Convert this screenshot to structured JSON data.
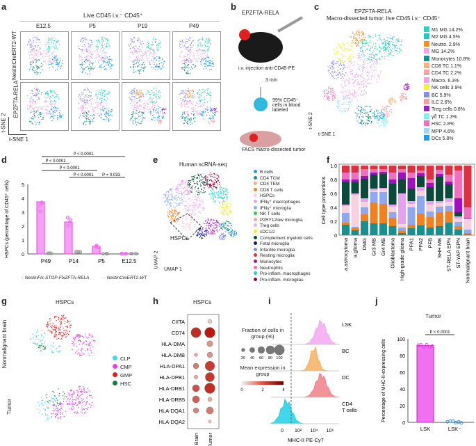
{
  "panels": {
    "a": {
      "label": "a",
      "header": "Live CD45 i.v.⁻ CD45⁺",
      "columns": [
        "E12.5",
        "P5",
        "P19",
        "P49"
      ],
      "rows": [
        "NestinCreERT2-WT",
        "EPZFTA-RELA"
      ],
      "axis_x": "t-SNE 1",
      "axis_y": "t-SNE 2"
    },
    "b": {
      "label": "b",
      "title": "EPZFTA-RELA",
      "step1": "i.v. injection anti-CD45-PE",
      "step2": "3 min",
      "step3": "99% CD45⁺ cells in blood labeled",
      "step4": "FACS macro-dissected tumor"
    },
    "c": {
      "label": "c",
      "title": "EPZFTA-RELA",
      "subtitle": "Macro-dissected tumor: live CD45 i.v.⁻ CD45⁺",
      "cluster_labels": [
        "M2 MG",
        "M1 MG",
        "Neutro.",
        "NK cells",
        "BC",
        "MG",
        "Treg cells",
        "Macro.",
        "CD8 TC",
        "ILC",
        "CD4 TC",
        "HSC",
        "MPP",
        "Monocytes",
        "DCs",
        "γδ TC"
      ],
      "legend": [
        {
          "label": "M1 MG 14.2%",
          "color": "#2bd4c0"
        },
        {
          "label": "M2 MG 4.5%",
          "color": "#1fc9c9"
        },
        {
          "label": "Neutro. 2.9%",
          "color": "#f39020"
        },
        {
          "label": "MG 14.2%",
          "color": "#e8a8f0"
        },
        {
          "label": "Monocytes 10.8%",
          "color": "#168f8f"
        },
        {
          "label": "CD8 TC 1.1%",
          "color": "#f7b27a"
        },
        {
          "label": "CD4 TC 2.2%",
          "color": "#f4a3a3"
        },
        {
          "label": "Macro. 6.3%",
          "color": "#f3a0e8"
        },
        {
          "label": "NK cells 3.9%",
          "color": "#f4f03a"
        },
        {
          "label": "BC 5.9%",
          "color": "#8c8ce8"
        },
        {
          "label": "ILC 2.6%",
          "color": "#f0a0a0"
        },
        {
          "label": "Treg cells 0.8%",
          "color": "#a020c0"
        },
        {
          "label": "γδ TC 1.3%",
          "color": "#7ff0ee"
        },
        {
          "label": "HSC 2.8%",
          "color": "#f070c0"
        },
        {
          "label": "MPP 4.6%",
          "color": "#a0d8f4"
        },
        {
          "label": "DCs 5.8%",
          "color": "#18a0e8"
        }
      ],
      "axis_x": "t-SNE 1",
      "axis_y": "t-SNE 2"
    },
    "d": {
      "label": "d",
      "legend": [
        "NestinFlx-STOP-FlxZFTA-RELA",
        "NestinCreERT2-WT"
      ]
    },
    "e": {
      "label": "e",
      "title": "Human scRNA-seq",
      "annotation": "HSPCs",
      "axis_x": "UMAP 1",
      "axis_y": "UMAP 2",
      "legend": [
        {
          "label": "B cells",
          "color": "#2a9fd6"
        },
        {
          "label": "CD4 TCM",
          "color": "#1a8f8f"
        },
        {
          "label": "CD4 TEM",
          "color": "#f2b070"
        },
        {
          "label": "CD8 T cells",
          "color": "#f08020"
        },
        {
          "label": "HSPCs",
          "color": "#f8d0e0"
        },
        {
          "label": "IFNγ⁺ macrophages",
          "color": "#e8a0f0"
        },
        {
          "label": "IFNγ⁺ microglia",
          "color": "#90a8f0"
        },
        {
          "label": "NK T cells",
          "color": "#30d030"
        },
        {
          "label": "P2RY12low microglia",
          "color": "#f0a0a0"
        },
        {
          "label": "Treg cells",
          "color": "#f0b0e8"
        },
        {
          "label": "cDC1/2",
          "color": "#f0f020"
        },
        {
          "label": "Complement myeloid cells",
          "color": "#0a4a3a"
        },
        {
          "label": "Fetal microglia",
          "color": "#101090"
        },
        {
          "label": "Infantile microglia",
          "color": "#8888e0"
        },
        {
          "label": "Resting microglia",
          "color": "#e03040"
        },
        {
          "label": "Monocytes",
          "color": "#a010c0"
        },
        {
          "label": "Neutrophils",
          "color": "#f070c0"
        },
        {
          "label": "Pro-inflam. macrophages",
          "color": "#20d0d0"
        },
        {
          "label": "Pro-inflam. microglias",
          "color": "#a00040"
        }
      ]
    },
    "f": {
      "label": "f"
    },
    "g": {
      "label": "g",
      "title": "HSPCs",
      "rows": [
        "Nonmalignant brain",
        "Tumor"
      ],
      "legend": [
        {
          "label": "CLP",
          "color": "#40d8f0"
        },
        {
          "label": "CMP",
          "color": "#e040e0"
        },
        {
          "label": "GMP",
          "color": "#e02020"
        },
        {
          "label": "HSC",
          "color": "#108040"
        }
      ]
    },
    "h": {
      "label": "h",
      "title": "HSPCs",
      "size_legend_title": "Fraction of cells in group (%)",
      "size_ticks": [
        "20",
        "40",
        "60",
        "80",
        "100"
      ],
      "color_legend_title": "Mean expression in group",
      "color_ticks": [
        "0",
        "2",
        "4"
      ]
    },
    "i": {
      "label": "i",
      "populations": [
        "LSK",
        "BC",
        "DC",
        "CD4 T cells"
      ],
      "colors": [
        "#f4a8f0",
        "#f5b060",
        "#f08088",
        "#20d0e8"
      ],
      "xlabel": "MHC-II PE-Cy7",
      "xticks": [
        "0",
        "10²",
        "10⁴",
        "10⁶"
      ]
    },
    "j": {
      "label": "j",
      "title": "Tumor",
      "pvalue": "P < 0.0001"
    }
  },
  "chart_data": [
    {
      "type": "bar",
      "panel": "d",
      "categories": [
        "P49",
        "P14",
        "P5",
        "E12.5"
      ],
      "ylabel": "HSPCs (percentage of CD45⁺ cells)",
      "ylim": [
        0,
        5
      ],
      "yticks": [
        "0",
        "1",
        "2",
        "3",
        "4",
        "5"
      ],
      "series": [
        {
          "name": "NestinFlx-STOP-FlxZFTA-RELA",
          "values": [
            3.75,
            2.3,
            0.55,
            0.02
          ],
          "color": "#f070f0"
        },
        {
          "name": "NestinCreERT2-WT",
          "values": [
            0.05,
            0.15,
            0.02,
            0.02
          ],
          "color": "#999999"
        }
      ],
      "comparisons": [
        {
          "pair": [
            "P49",
            "E12.5"
          ],
          "p": "P < 0.0001"
        },
        {
          "pair": [
            "P49",
            "P14"
          ],
          "p": "P < 0.0001"
        },
        {
          "pair": [
            "P49",
            "P5"
          ],
          "p": "P < 0.0001"
        },
        {
          "pair": [
            "P14",
            "P5"
          ],
          "p": "P < 0.0001"
        },
        {
          "pair": [
            "P5",
            "E12.5"
          ],
          "p": "P = 0.033"
        }
      ]
    },
    {
      "type": "bar",
      "panel": "f",
      "stacked": true,
      "ylabel": "Cell type proportions",
      "ylim": [
        0,
        1
      ],
      "yticks": [
        "0",
        "0.2",
        "0.4",
        "0.6",
        "0.8",
        "1.0"
      ],
      "categories": [
        "a.astrocytoma",
        "a.glioma",
        "DMG",
        "Gr3 MB",
        "Gr4 MB",
        "Glioblastoma",
        "High-grade glioma",
        "PFA1",
        "PFA2",
        "PFB",
        "SHH MB",
        "ST-RELA EPN",
        "ST-YAP EPN",
        "Nonmalignant brain"
      ],
      "segments": [
        {
          "color": "#1a8f8f",
          "values": [
            0.15,
            0.07,
            0.2,
            0.17,
            0.17,
            0.13,
            0.03,
            0.1,
            0.14,
            0.11,
            0.13,
            0.18,
            0.08,
            0.01
          ]
        },
        {
          "color": "#f08020",
          "values": [
            0.03,
            0.03,
            0.1,
            0.3,
            0.28,
            0.12,
            0.03,
            0.05,
            0.17,
            0.15,
            0.2,
            0.16,
            0.05,
            0.02
          ]
        },
        {
          "color": "#90a8f0",
          "values": [
            0.14,
            0.02,
            0.1,
            0.15,
            0.17,
            0.08,
            0.05,
            0.25,
            0.25,
            0.08,
            0.08,
            0.08,
            0.06,
            0.05
          ]
        },
        {
          "color": "#f8d0e0",
          "values": [
            0.1,
            0.46,
            0.08,
            0.02,
            0.04,
            0.08,
            0.05,
            0.05,
            0.08,
            0.1,
            0.05,
            0.06,
            0.05,
            0.15
          ]
        },
        {
          "color": "#e8a0f0",
          "values": [
            0.02,
            0.02,
            0.05,
            0.03,
            0.02,
            0.03,
            0.44,
            0.04,
            0.05,
            0.05,
            0.03,
            0.05,
            0.03,
            0.01
          ]
        },
        {
          "color": "#0a4a3a",
          "values": [
            0.32,
            0.16,
            0.28,
            0.2,
            0.2,
            0.3,
            0.2,
            0.18,
            0.16,
            0.2,
            0.35,
            0.2,
            0.06,
            0.0
          ]
        },
        {
          "color": "#a010c0",
          "values": [
            0.04,
            0.04,
            0.04,
            0.03,
            0.03,
            0.06,
            0.1,
            0.15,
            0.04,
            0.06,
            0.04,
            0.04,
            0.2,
            0.01
          ]
        },
        {
          "color": "#f070c0",
          "values": [
            0.1,
            0.1,
            0.1,
            0.05,
            0.04,
            0.1,
            0.05,
            0.08,
            0.04,
            0.05,
            0.06,
            0.1,
            0.4,
            0.15
          ]
        },
        {
          "color": "#e03040",
          "values": [
            0.1,
            0.1,
            0.05,
            0.05,
            0.05,
            0.1,
            0.05,
            0.1,
            0.07,
            0.2,
            0.06,
            0.13,
            0.07,
            0.6
          ]
        }
      ]
    },
    {
      "type": "scatter",
      "panel": "h",
      "subtype": "dotplot",
      "groups": [
        "Brain",
        "Tumor"
      ],
      "genes": [
        "CIITA",
        "CD74",
        "HLA-DMA",
        "HLA-DMB",
        "HLA-DPA1",
        "HLA-DPB1",
        "HLA-DRB1",
        "HLA-DRB5",
        "HLA-DQA1",
        "HLA-DQA2"
      ],
      "fraction_pct": [
        [
          0,
          20
        ],
        [
          95,
          100
        ],
        [
          0,
          45
        ],
        [
          15,
          40
        ],
        [
          40,
          90
        ],
        [
          20,
          85
        ],
        [
          60,
          100
        ],
        [
          60,
          25
        ],
        [
          40,
          60
        ],
        [
          0,
          10
        ]
      ],
      "mean_expression": [
        [
          0,
          0.5
        ],
        [
          3.5,
          3.9
        ],
        [
          0,
          1.5
        ],
        [
          1,
          1.5
        ],
        [
          2,
          3.2
        ],
        [
          1,
          3.3
        ],
        [
          2.8,
          3.5
        ],
        [
          2.5,
          1
        ],
        [
          1.8,
          2
        ],
        [
          0,
          0.5
        ]
      ]
    },
    {
      "type": "bar",
      "panel": "j",
      "categories": [
        "LSK",
        "LSK⁻"
      ],
      "values": [
        92,
        1
      ],
      "ylabel": "Percentage of MHC-II-expressing cells",
      "ylim": [
        0,
        100
      ],
      "yticks": [
        "0",
        "20",
        "40",
        "60",
        "80",
        "100"
      ],
      "color": "#f070f0"
    }
  ]
}
